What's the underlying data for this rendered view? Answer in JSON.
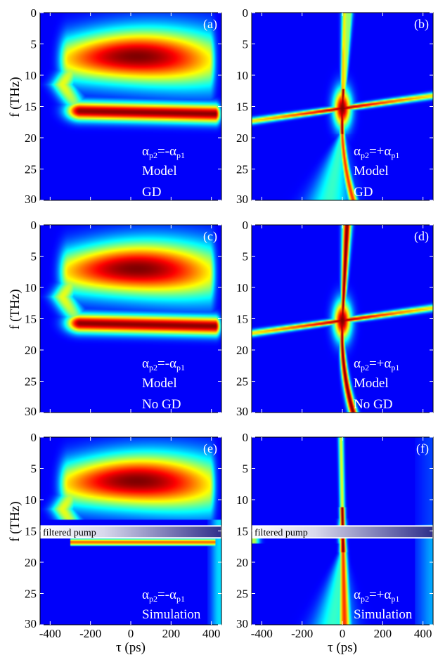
{
  "chart_data": {
    "type": "heatmap",
    "colormap": "jet",
    "x_axis": {
      "label": "τ (ps)",
      "range": [
        -450,
        450
      ],
      "ticks": [
        -400,
        -200,
        0,
        200,
        400
      ]
    },
    "y_axis": {
      "label": "f (THz)",
      "range": [
        0,
        30
      ],
      "ticks": [
        0,
        5,
        10,
        15,
        20,
        25,
        30
      ],
      "inverted": true
    },
    "panels": [
      {
        "id": "a",
        "label": "(a)",
        "lines": [
          "Model",
          "GD"
        ],
        "condition": "αp2=-αp1",
        "alpha_sign": "-",
        "kind": "wedge",
        "filtered_pump": false
      },
      {
        "id": "b",
        "label": "(b)",
        "lines": [
          "Model",
          "GD"
        ],
        "condition": "αp2=+αp1",
        "alpha_sign": "+",
        "kind": "cross-gd",
        "filtered_pump": false
      },
      {
        "id": "c",
        "label": "(c)",
        "lines": [
          "Model",
          "No GD"
        ],
        "condition": "αp2=-αp1",
        "alpha_sign": "-",
        "kind": "wedge",
        "filtered_pump": false
      },
      {
        "id": "d",
        "label": "(d)",
        "lines": [
          "Model",
          "No GD"
        ],
        "condition": "αp2=+αp1",
        "alpha_sign": "+",
        "kind": "cross",
        "filtered_pump": false
      },
      {
        "id": "e",
        "label": "(e)",
        "lines": [
          "Simulation"
        ],
        "condition": "αp2=-αp1",
        "alpha_sign": "-",
        "kind": "sim-wedge",
        "filtered_pump": true
      },
      {
        "id": "f",
        "label": "(f)",
        "lines": [
          "Simulation"
        ],
        "condition": "αp2=+αp1",
        "alpha_sign": "+",
        "kind": "sim-cross",
        "filtered_pump": true
      }
    ],
    "filtered_pump_label": "filtered pump",
    "filtered_pump_band_thz": [
      14.2,
      16.1
    ]
  }
}
